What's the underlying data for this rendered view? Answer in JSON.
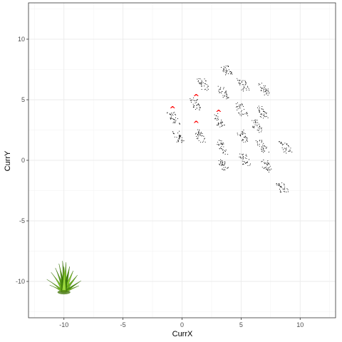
{
  "chart_data": {
    "type": "scatter",
    "title": "",
    "xlabel": "CurrX",
    "ylabel": "CurrY",
    "xlim": [
      -13,
      13
    ],
    "ylim": [
      -13,
      13
    ],
    "x_ticks": [
      -10,
      -5,
      0,
      5,
      10
    ],
    "y_ticks": [
      -10,
      -5,
      0,
      5,
      10
    ],
    "x_tick_labels": [
      "-10",
      "-5",
      "0",
      "5",
      "10"
    ],
    "y_tick_labels": [
      "-10",
      "-5",
      "0",
      "5",
      "10"
    ],
    "grid": true,
    "legend": "none",
    "theme": "bw",
    "point_color": "#000000",
    "marker_color": "#ff0000",
    "marker_symbol": "^",
    "clusters": [
      {
        "x": -0.7,
        "y": 3.5,
        "dx": 0.35,
        "dy": 0.5
      },
      {
        "x": -0.3,
        "y": 1.9,
        "dx": 0.35,
        "dy": 0.5
      },
      {
        "x": 1.2,
        "y": 4.6,
        "dx": 0.35,
        "dy": 0.5
      },
      {
        "x": 1.5,
        "y": 2.0,
        "dx": 0.35,
        "dy": 0.5
      },
      {
        "x": 1.8,
        "y": 6.3,
        "dx": 0.35,
        "dy": 0.5
      },
      {
        "x": 3.1,
        "y": 3.3,
        "dx": 0.35,
        "dy": 0.5
      },
      {
        "x": 3.4,
        "y": 1.0,
        "dx": 0.3,
        "dy": 0.6
      },
      {
        "x": 3.5,
        "y": 5.6,
        "dx": 0.35,
        "dy": 0.5
      },
      {
        "x": 3.5,
        "y": -0.4,
        "dx": 0.3,
        "dy": 0.4
      },
      {
        "x": 3.8,
        "y": 7.4,
        "dx": 0.35,
        "dy": 0.4
      },
      {
        "x": 5.0,
        "y": 4.2,
        "dx": 0.35,
        "dy": 0.5
      },
      {
        "x": 5.1,
        "y": 2.0,
        "dx": 0.35,
        "dy": 0.5
      },
      {
        "x": 5.2,
        "y": 6.2,
        "dx": 0.35,
        "dy": 0.5
      },
      {
        "x": 5.3,
        "y": 0.1,
        "dx": 0.35,
        "dy": 0.5
      },
      {
        "x": 6.3,
        "y": 2.8,
        "dx": 0.35,
        "dy": 0.5
      },
      {
        "x": 6.8,
        "y": 4.0,
        "dx": 0.35,
        "dy": 0.5
      },
      {
        "x": 7.0,
        "y": 5.8,
        "dx": 0.35,
        "dy": 0.5
      },
      {
        "x": 7.1,
        "y": -0.5,
        "dx": 0.35,
        "dy": 0.5
      },
      {
        "x": 6.8,
        "y": 1.2,
        "dx": 0.35,
        "dy": 0.5
      },
      {
        "x": 8.8,
        "y": 1.1,
        "dx": 0.4,
        "dy": 0.5
      },
      {
        "x": 8.5,
        "y": -2.3,
        "dx": 0.4,
        "dy": 0.4
      }
    ],
    "markers": [
      {
        "x": -0.8,
        "y": 4.3
      },
      {
        "x": 1.2,
        "y": 5.3
      },
      {
        "x": 1.2,
        "y": 3.1
      },
      {
        "x": 3.1,
        "y": 4.0
      }
    ],
    "plant": {
      "x": -10.0,
      "y": -10.3
    }
  }
}
